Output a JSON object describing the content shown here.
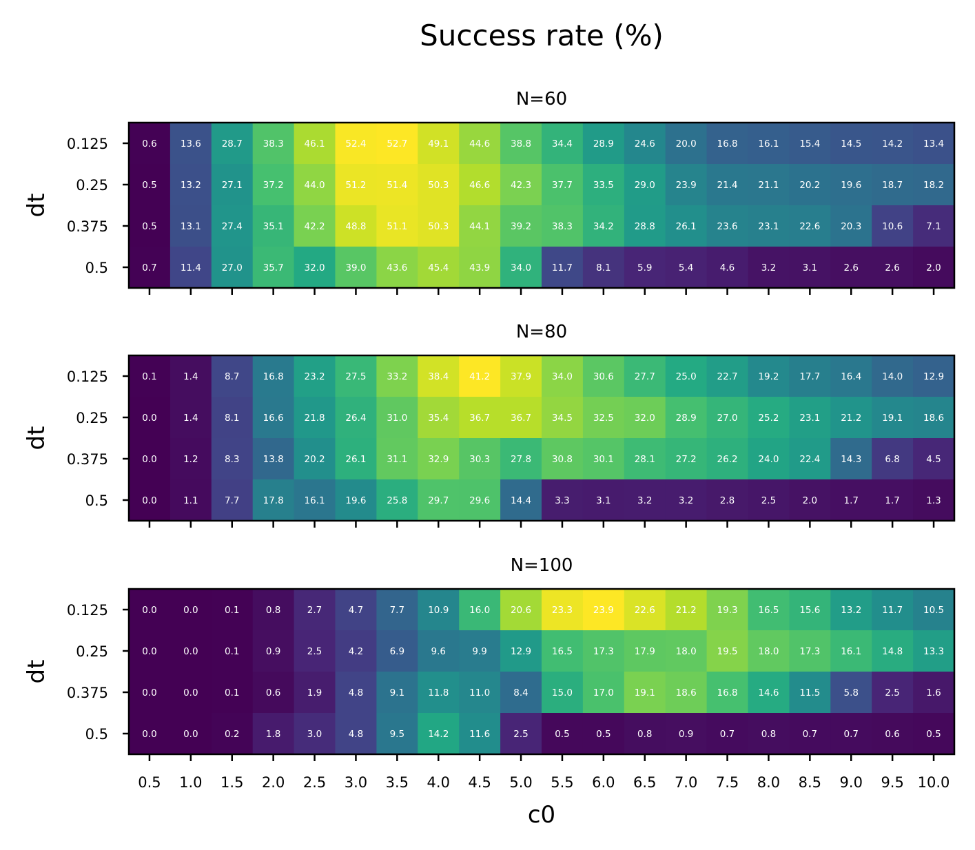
{
  "chart_data": {
    "type": "heatmap",
    "title": "Success rate (%)",
    "xlabel": "c0",
    "ylabel": "dt",
    "colormap": "viridis",
    "x": [
      "0.5",
      "1.0",
      "1.5",
      "2.0",
      "2.5",
      "3.0",
      "3.5",
      "4.0",
      "4.5",
      "5.0",
      "5.5",
      "6.0",
      "6.5",
      "7.0",
      "7.5",
      "8.0",
      "8.5",
      "9.0",
      "9.5",
      "10.0"
    ],
    "y": [
      "0.125",
      "0.25",
      "0.375",
      "0.5"
    ],
    "panels": [
      {
        "name": "N=60",
        "values": [
          [
            0.6,
            13.6,
            28.7,
            38.3,
            46.1,
            52.4,
            52.7,
            49.1,
            44.6,
            38.8,
            34.4,
            28.9,
            24.6,
            20.0,
            16.8,
            16.1,
            15.4,
            14.5,
            14.2,
            13.4
          ],
          [
            0.5,
            13.2,
            27.1,
            37.2,
            44.0,
            51.2,
            51.4,
            50.3,
            46.6,
            42.3,
            37.7,
            33.5,
            29.0,
            23.9,
            21.4,
            21.1,
            20.2,
            19.6,
            18.7,
            18.2
          ],
          [
            0.5,
            13.1,
            27.4,
            35.1,
            42.2,
            48.8,
            51.1,
            50.3,
            44.1,
            39.2,
            38.3,
            34.2,
            28.8,
            26.1,
            23.6,
            23.1,
            22.6,
            20.3,
            10.6,
            7.1
          ],
          [
            0.7,
            11.4,
            27.0,
            35.7,
            32.0,
            39.0,
            43.6,
            45.4,
            43.9,
            34.0,
            11.7,
            8.1,
            5.9,
            5.4,
            4.6,
            3.2,
            3.1,
            2.6,
            2.6,
            2.0
          ]
        ]
      },
      {
        "name": "N=80",
        "values": [
          [
            0.1,
            1.4,
            8.7,
            16.8,
            23.2,
            27.5,
            33.2,
            38.4,
            41.2,
            37.9,
            34.0,
            30.6,
            27.7,
            25.0,
            22.7,
            19.2,
            17.7,
            16.4,
            14.0,
            12.9
          ],
          [
            0.0,
            1.4,
            8.1,
            16.6,
            21.8,
            26.4,
            31.0,
            35.4,
            36.7,
            36.7,
            34.5,
            32.5,
            32.0,
            28.9,
            27.0,
            25.2,
            23.1,
            21.2,
            19.1,
            18.6
          ],
          [
            0.0,
            1.2,
            8.3,
            13.8,
            20.2,
            26.1,
            31.1,
            32.9,
            30.3,
            27.8,
            30.8,
            30.1,
            28.1,
            27.2,
            26.2,
            24.0,
            22.4,
            14.3,
            6.8,
            4.5
          ],
          [
            0.0,
            1.1,
            7.7,
            17.8,
            16.1,
            19.6,
            25.8,
            29.7,
            29.6,
            14.4,
            3.3,
            3.1,
            3.2,
            3.2,
            2.8,
            2.5,
            2.0,
            1.7,
            1.7,
            1.3
          ]
        ]
      },
      {
        "name": "N=100",
        "values": [
          [
            0.0,
            0.0,
            0.1,
            0.8,
            2.7,
            4.7,
            7.7,
            10.9,
            16.0,
            20.6,
            23.3,
            23.9,
            22.6,
            21.2,
            19.3,
            16.5,
            15.6,
            13.2,
            11.7,
            10.5
          ],
          [
            0.0,
            0.0,
            0.1,
            0.9,
            2.5,
            4.2,
            6.9,
            9.6,
            9.9,
            12.9,
            16.5,
            17.3,
            17.9,
            18.0,
            19.5,
            18.0,
            17.3,
            16.1,
            14.8,
            13.3
          ],
          [
            0.0,
            0.0,
            0.1,
            0.6,
            1.9,
            4.8,
            9.1,
            11.8,
            11.0,
            8.4,
            15.0,
            17.0,
            19.1,
            18.6,
            16.8,
            14.6,
            11.5,
            5.8,
            2.5,
            1.6
          ],
          [
            0.0,
            0.0,
            0.2,
            1.8,
            3.0,
            4.8,
            9.5,
            14.2,
            11.6,
            2.5,
            0.5,
            0.5,
            0.8,
            0.9,
            0.7,
            0.8,
            0.7,
            0.7,
            0.6,
            0.5
          ]
        ]
      }
    ]
  }
}
